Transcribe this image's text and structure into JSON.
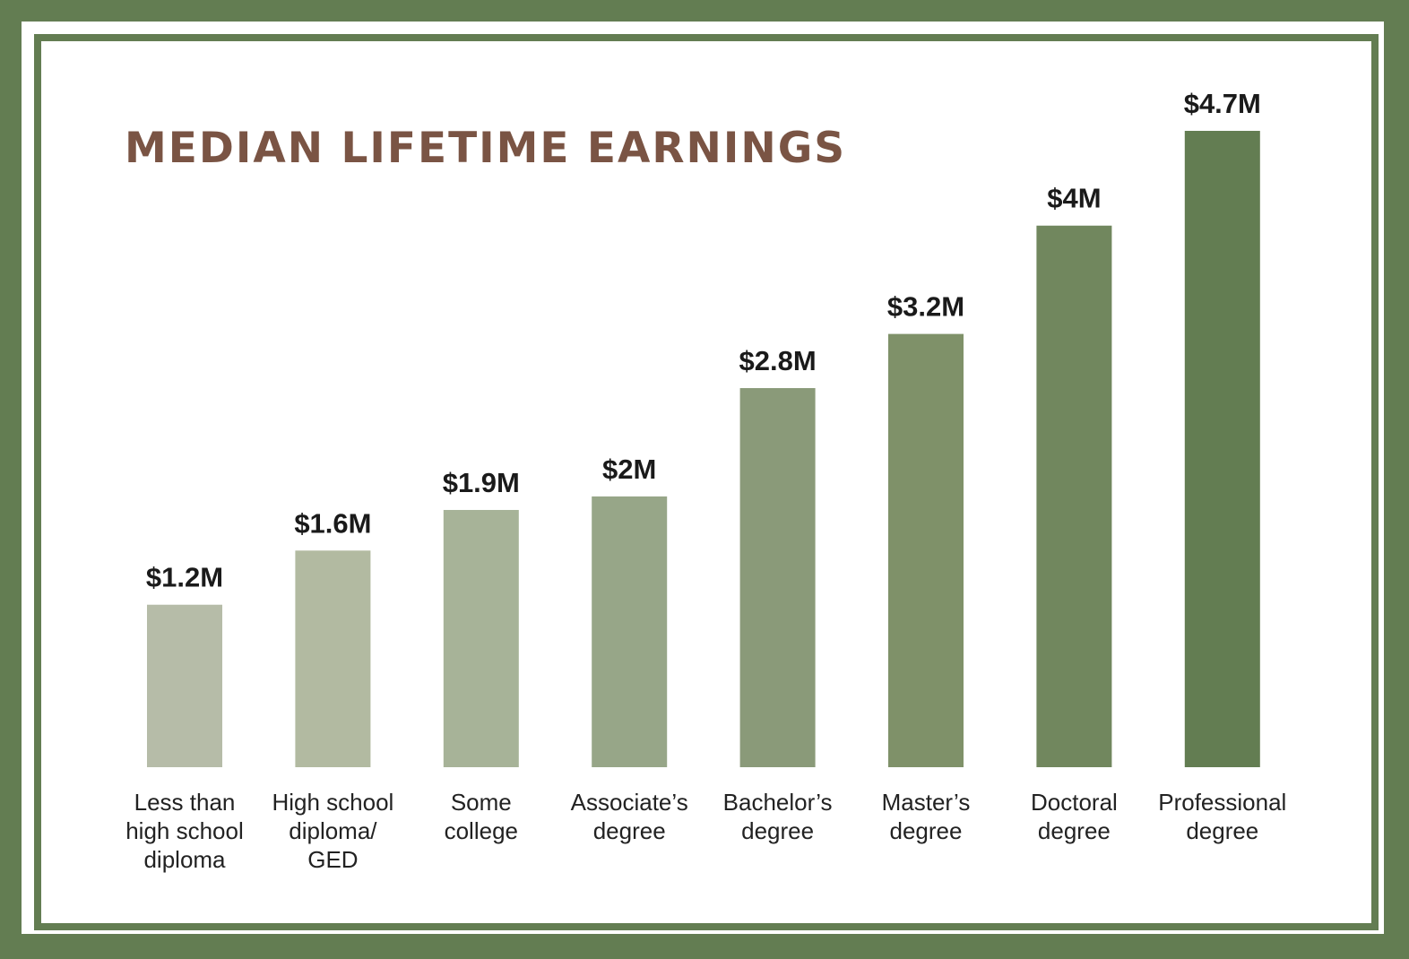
{
  "chart_data": {
    "type": "bar",
    "title": "MEDIAN LIFETIME EARNINGS",
    "categories": [
      [
        "Less than",
        "high school",
        "diploma"
      ],
      [
        "High school",
        "diploma/",
        "GED"
      ],
      [
        "Some",
        "college"
      ],
      [
        "Associate’s",
        "degree"
      ],
      [
        "Bachelor’s",
        "degree"
      ],
      [
        "Master’s",
        "degree"
      ],
      [
        "Doctoral",
        "degree"
      ],
      [
        "Professional",
        "degree"
      ]
    ],
    "values": [
      1.2,
      1.6,
      1.9,
      2.0,
      2.8,
      3.2,
      4.0,
      4.7
    ],
    "value_labels": [
      "$1.2M",
      "$1.6M",
      "$1.9M",
      "$2M",
      "$2.8M",
      "$3.2M",
      "$4M",
      "$4.7M"
    ],
    "ylim": [
      0,
      4.7
    ],
    "grid": false,
    "bar_colors": [
      "#b6bca8",
      "#b2baa1",
      "#a7b398",
      "#97a688",
      "#8a9a79",
      "#7f9169",
      "#71875e",
      "#637d52"
    ],
    "frame_color": "#637d52",
    "title_color": "#7a5444"
  }
}
